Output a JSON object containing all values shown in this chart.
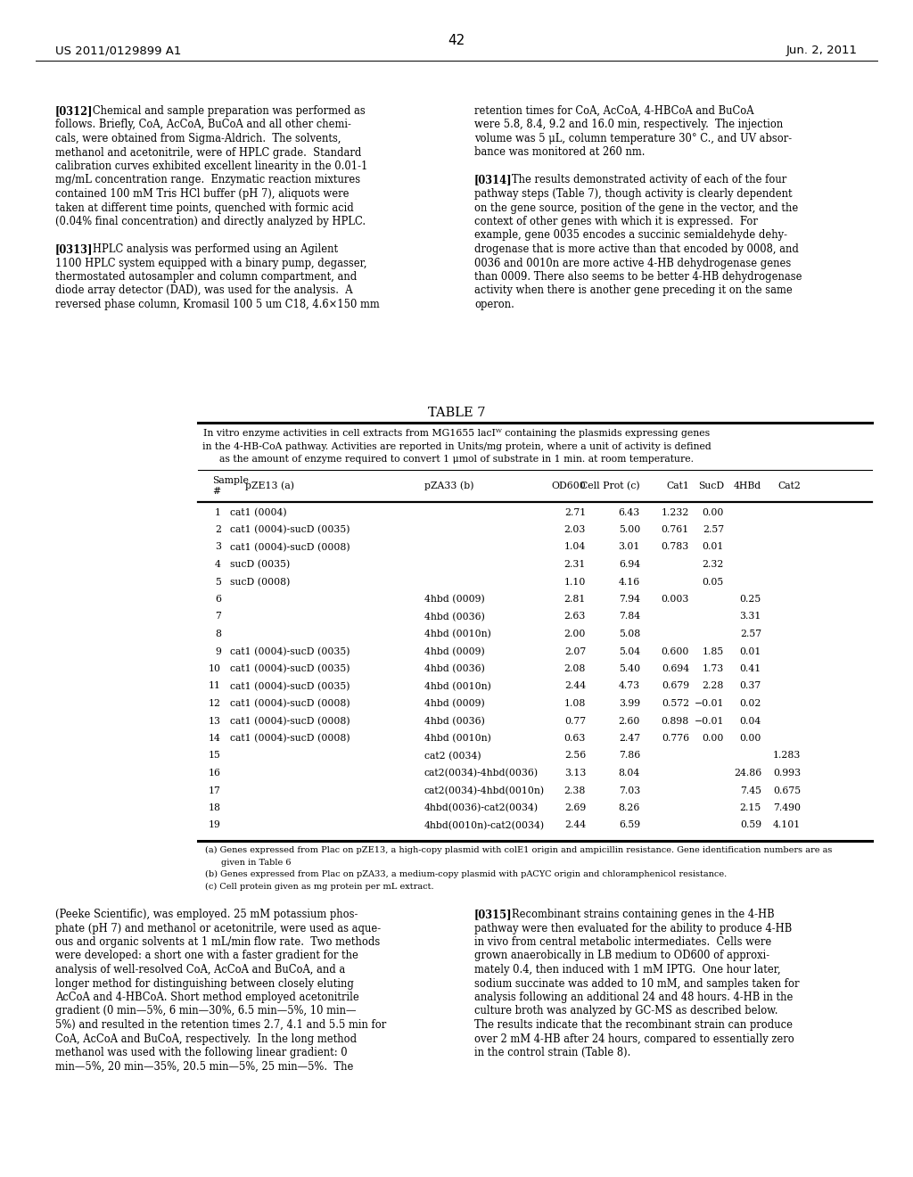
{
  "page_number": "42",
  "patent_left": "US 2011/0129899 A1",
  "patent_right": "Jun. 2, 2011",
  "table_title": "TABLE 7",
  "table_caption_lines": [
    "In vitro enzyme activities in cell extracts from MG1655 lacIᵂ containing the plasmids expressing genes",
    "in the 4-HB-CoA pathway. Activities are reported in Units/mg protein, where a unit of activity is defined",
    "as the amount of enzyme required to convert 1 μmol of substrate in 1 min. at room temperature."
  ],
  "col_headers_line1": [
    "Sample",
    "",
    "",
    "",
    "",
    "",
    "",
    "",
    ""
  ],
  "col_headers_line2": [
    "#",
    "pZE13 (a)",
    "pZA33 (b)",
    "OD600",
    "Cell Prot (c)",
    "Cat1",
    "SucD",
    "4HBd",
    "Cat2"
  ],
  "rows": [
    [
      "1",
      "cat1 (0004)",
      "",
      "2.71",
      "6.43",
      "1.232",
      "0.00",
      "",
      ""
    ],
    [
      "2",
      "cat1 (0004)-sucD (0035)",
      "",
      "2.03",
      "5.00",
      "0.761",
      "2.57",
      "",
      ""
    ],
    [
      "3",
      "cat1 (0004)-sucD (0008)",
      "",
      "1.04",
      "3.01",
      "0.783",
      "0.01",
      "",
      ""
    ],
    [
      "4",
      "sucD (0035)",
      "",
      "2.31",
      "6.94",
      "",
      "2.32",
      "",
      ""
    ],
    [
      "5",
      "sucD (0008)",
      "",
      "1.10",
      "4.16",
      "",
      "0.05",
      "",
      ""
    ],
    [
      "6",
      "",
      "4hbd (0009)",
      "2.81",
      "7.94",
      "0.003",
      "",
      "0.25",
      ""
    ],
    [
      "7",
      "",
      "4hbd (0036)",
      "2.63",
      "7.84",
      "",
      "",
      "3.31",
      ""
    ],
    [
      "8",
      "",
      "4hbd (0010n)",
      "2.00",
      "5.08",
      "",
      "",
      "2.57",
      ""
    ],
    [
      "9",
      "cat1 (0004)-sucD (0035)",
      "4hbd (0009)",
      "2.07",
      "5.04",
      "0.600",
      "1.85",
      "0.01",
      ""
    ],
    [
      "10",
      "cat1 (0004)-sucD (0035)",
      "4hbd (0036)",
      "2.08",
      "5.40",
      "0.694",
      "1.73",
      "0.41",
      ""
    ],
    [
      "11",
      "cat1 (0004)-sucD (0035)",
      "4hbd (0010n)",
      "2.44",
      "4.73",
      "0.679",
      "2.28",
      "0.37",
      ""
    ],
    [
      "12",
      "cat1 (0004)-sucD (0008)",
      "4hbd (0009)",
      "1.08",
      "3.99",
      "0.572",
      "−0.01",
      "0.02",
      ""
    ],
    [
      "13",
      "cat1 (0004)-sucD (0008)",
      "4hbd (0036)",
      "0.77",
      "2.60",
      "0.898",
      "−0.01",
      "0.04",
      ""
    ],
    [
      "14",
      "cat1 (0004)-sucD (0008)",
      "4hbd (0010n)",
      "0.63",
      "2.47",
      "0.776",
      "0.00",
      "0.00",
      ""
    ],
    [
      "15",
      "",
      "cat2 (0034)",
      "2.56",
      "7.86",
      "",
      "",
      "",
      "1.283"
    ],
    [
      "16",
      "",
      "cat2(0034)-4hbd(0036)",
      "3.13",
      "8.04",
      "",
      "",
      "24.86",
      "0.993"
    ],
    [
      "17",
      "",
      "cat2(0034)-4hbd(0010n)",
      "2.38",
      "7.03",
      "",
      "",
      "7.45",
      "0.675"
    ],
    [
      "18",
      "",
      "4hbd(0036)-cat2(0034)",
      "2.69",
      "8.26",
      "",
      "",
      "2.15",
      "7.490"
    ],
    [
      "19",
      "",
      "4hbd(0010n)-cat2(0034)",
      "2.44",
      "6.59",
      "",
      "",
      "0.59",
      "4.101"
    ]
  ],
  "footnote_lines": [
    "(a) Genes expressed from Plac on pZE13, a high-copy plasmid with colE1 origin and ampicillin resistance. Gene identification numbers are as",
    "given in Table 6",
    "(b) Genes expressed from Plac on pZA33, a medium-copy plasmid with pACYC origin and chloramphenicol resistance.",
    "(c) Cell protein given as mg protein per mL extract."
  ],
  "left_col_lines": [
    "[0312]   Chemical and sample preparation was performed as",
    "follows. Briefly, CoA, AcCoA, BuCoA and all other chemi-",
    "cals, were obtained from Sigma-Aldrich.  The solvents,",
    "methanol and acetonitrile, were of HPLC grade.  Standard",
    "calibration curves exhibited excellent linearity in the 0.01-1",
    "mg/mL concentration range.  Enzymatic reaction mixtures",
    "contained 100 mM Tris HCl buffer (pH 7), aliquots were",
    "taken at different time points, quenched with formic acid",
    "(0.04% final concentration) and directly analyzed by HPLC.",
    "",
    "[0313]   HPLC analysis was performed using an Agilent",
    "1100 HPLC system equipped with a binary pump, degasser,",
    "thermostated autosampler and column compartment, and",
    "diode array detector (DAD), was used for the analysis.  A",
    "reversed phase column, Kromasil 100 5 um C18, 4.6×150 mm"
  ],
  "right_col_lines": [
    "retention times for CoA, AcCoA, 4-HBCoA and BuCoA",
    "were 5.8, 8.4, 9.2 and 16.0 min, respectively.  The injection",
    "volume was 5 μL, column temperature 30° C., and UV absor-",
    "bance was monitored at 260 nm.",
    "",
    "[0314]   The results demonstrated activity of each of the four",
    "pathway steps (Table 7), though activity is clearly dependent",
    "on the gene source, position of the gene in the vector, and the",
    "context of other genes with which it is expressed.  For",
    "example, gene 0035 encodes a succinic semialdehyde dehy-",
    "drogenase that is more active than that encoded by 0008, and",
    "0036 and 0010n are more active 4-HB dehydrogenase genes",
    "than 0009. There also seems to be better 4-HB dehydrogenase",
    "activity when there is another gene preceding it on the same",
    "operon."
  ],
  "left_col_bottom_lines": [
    "(Peeke Scientific), was employed. 25 mM potassium phos-",
    "phate (pH 7) and methanol or acetonitrile, were used as aque-",
    "ous and organic solvents at 1 mL/min flow rate.  Two methods",
    "were developed: a short one with a faster gradient for the",
    "analysis of well-resolved CoA, AcCoA and BuCoA, and a",
    "longer method for distinguishing between closely eluting",
    "AcCoA and 4-HBCoA. Short method employed acetonitrile",
    "gradient (0 min—5%, 6 min—30%, 6.5 min—5%, 10 min—",
    "5%) and resulted in the retention times 2.7, 4.1 and 5.5 min for",
    "CoA, AcCoA and BuCoA, respectively.  In the long method",
    "methanol was used with the following linear gradient: 0",
    "min—5%, 20 min—35%, 20.5 min—5%, 25 min—5%.  The"
  ],
  "right_col_bottom_lines": [
    "[0315]   Recombinant strains containing genes in the 4-HB",
    "pathway were then evaluated for the ability to produce 4-HB",
    "in vivo from central metabolic intermediates.  Cells were",
    "grown anaerobically in LB medium to OD600 of approxi-",
    "mately 0.4, then induced with 1 mM IPTG.  One hour later,",
    "sodium succinate was added to 10 mM, and samples taken for",
    "analysis following an additional 24 and 48 hours. 4-HB in the",
    "culture broth was analyzed by GC-MS as described below.",
    "The results indicate that the recombinant strain can produce",
    "over 2 mM 4-HB after 24 hours, compared to essentially zero",
    "in the control strain (Table 8)."
  ]
}
